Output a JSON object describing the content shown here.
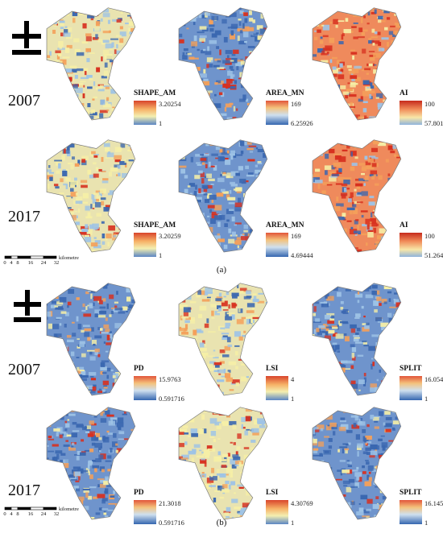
{
  "panels": [
    {
      "label": "(a)",
      "rows": [
        {
          "year": "2007",
          "maps": [
            {
              "metric": "SHAPE_AM",
              "max": "3.20254",
              "min": "1",
              "scheme": "mixed"
            },
            {
              "metric": "AREA_MN",
              "max": "169",
              "min": "6.25926",
              "scheme": "blue"
            },
            {
              "metric": "AI",
              "max": "100",
              "min": "57.801",
              "scheme": "red"
            }
          ]
        },
        {
          "year": "2017",
          "maps": [
            {
              "metric": "SHAPE_AM",
              "max": "3.20259",
              "min": "1",
              "scheme": "mixed"
            },
            {
              "metric": "AREA_MN",
              "max": "169",
              "min": "4.69444",
              "scheme": "blue"
            },
            {
              "metric": "AI",
              "max": "100",
              "min": "51.2642",
              "scheme": "red"
            }
          ]
        }
      ],
      "scalebar": {
        "ticks": [
          "0",
          "4",
          "8",
          "16",
          "24",
          "32"
        ],
        "unit": "kilometre"
      }
    },
    {
      "label": "(b)",
      "rows": [
        {
          "year": "2007",
          "maps": [
            {
              "metric": "PD",
              "max": "15.9763",
              "min": "0.591716",
              "scheme": "blue"
            },
            {
              "metric": "LSI",
              "max": "4",
              "min": "1",
              "scheme": "mixed"
            },
            {
              "metric": "SPLIT",
              "max": "16.0545",
              "min": "1",
              "scheme": "blue"
            }
          ]
        },
        {
          "year": "2017",
          "maps": [
            {
              "metric": "PD",
              "max": "21.3018",
              "min": "0.591716",
              "scheme": "blue"
            },
            {
              "metric": "LSI",
              "max": "4.30769",
              "min": "1",
              "scheme": "mixed"
            },
            {
              "metric": "SPLIT",
              "max": "16.1453",
              "min": "1",
              "scheme": "blue"
            }
          ]
        }
      ],
      "scalebar": {
        "ticks": [
          "0",
          "4",
          "8",
          "16",
          "24",
          "32"
        ],
        "unit": "kilometre"
      }
    }
  ],
  "colors": {
    "red": "#d7301f",
    "orange": "#f4a05a",
    "yellow": "#f6efa6",
    "blue": "#3a67b0",
    "light_blue": "#9ec3e6"
  }
}
